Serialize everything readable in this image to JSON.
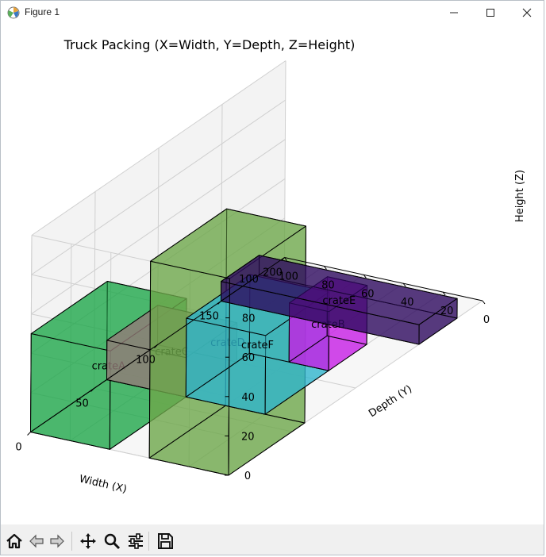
{
  "window": {
    "title": "Figure 1"
  },
  "chart_data": {
    "type": "3d-bar",
    "title": "Truck Packing (X=Width, Y=Depth, Z=Height)",
    "xlabel": "Width (X)",
    "ylabel": "Depth (Y)",
    "zlabel": "Height (Z)",
    "xlim": [
      0,
      100
    ],
    "ylim": [
      0,
      200
    ],
    "zlim": [
      0,
      100
    ],
    "x_ticks": [
      "0",
      "20",
      "40",
      "60",
      "80",
      "100"
    ],
    "y_ticks": [
      "0",
      "50",
      "100",
      "150",
      "200"
    ],
    "z_ticks": [
      "0",
      "20",
      "40",
      "60",
      "80",
      "100"
    ],
    "grid": true,
    "boxes": [
      {
        "name": "crateA",
        "x": 60,
        "y": 0,
        "z": 0,
        "dx": 40,
        "dy": 60,
        "dz": 50,
        "color": "#1fa84a"
      },
      {
        "name": "crateB",
        "x": 20,
        "y": 110,
        "z": 0,
        "dx": 20,
        "dy": 30,
        "dz": 30,
        "color": "#c71ee6"
      },
      {
        "name": "crateC",
        "x": 60,
        "y": 60,
        "z": 0,
        "dx": 40,
        "dy": 40,
        "dz": 20,
        "color": "#947a78"
      },
      {
        "name": "crateD",
        "x": 0,
        "y": 0,
        "z": 0,
        "dx": 40,
        "dy": 60,
        "dz": 100,
        "color": "#6ea84a"
      },
      {
        "name": "crateE",
        "x": 0,
        "y": 150,
        "z": 0,
        "dx": 100,
        "dy": 30,
        "dz": 10,
        "color": "#2d0a5e"
      },
      {
        "name": "crateF",
        "x": 20,
        "y": 60,
        "z": 0,
        "dx": 40,
        "dy": 50,
        "dz": 40,
        "color": "#2fb4cc"
      }
    ]
  },
  "toolbar": {
    "buttons": [
      {
        "name": "home-icon",
        "icon": "home"
      },
      {
        "name": "back-icon",
        "icon": "back"
      },
      {
        "name": "forward-icon",
        "icon": "forward"
      },
      {
        "name": "pan-icon",
        "icon": "pan"
      },
      {
        "name": "zoom-icon",
        "icon": "zoom"
      },
      {
        "name": "configure-subplots-icon",
        "icon": "configure"
      },
      {
        "name": "save-icon",
        "icon": "save"
      }
    ]
  }
}
